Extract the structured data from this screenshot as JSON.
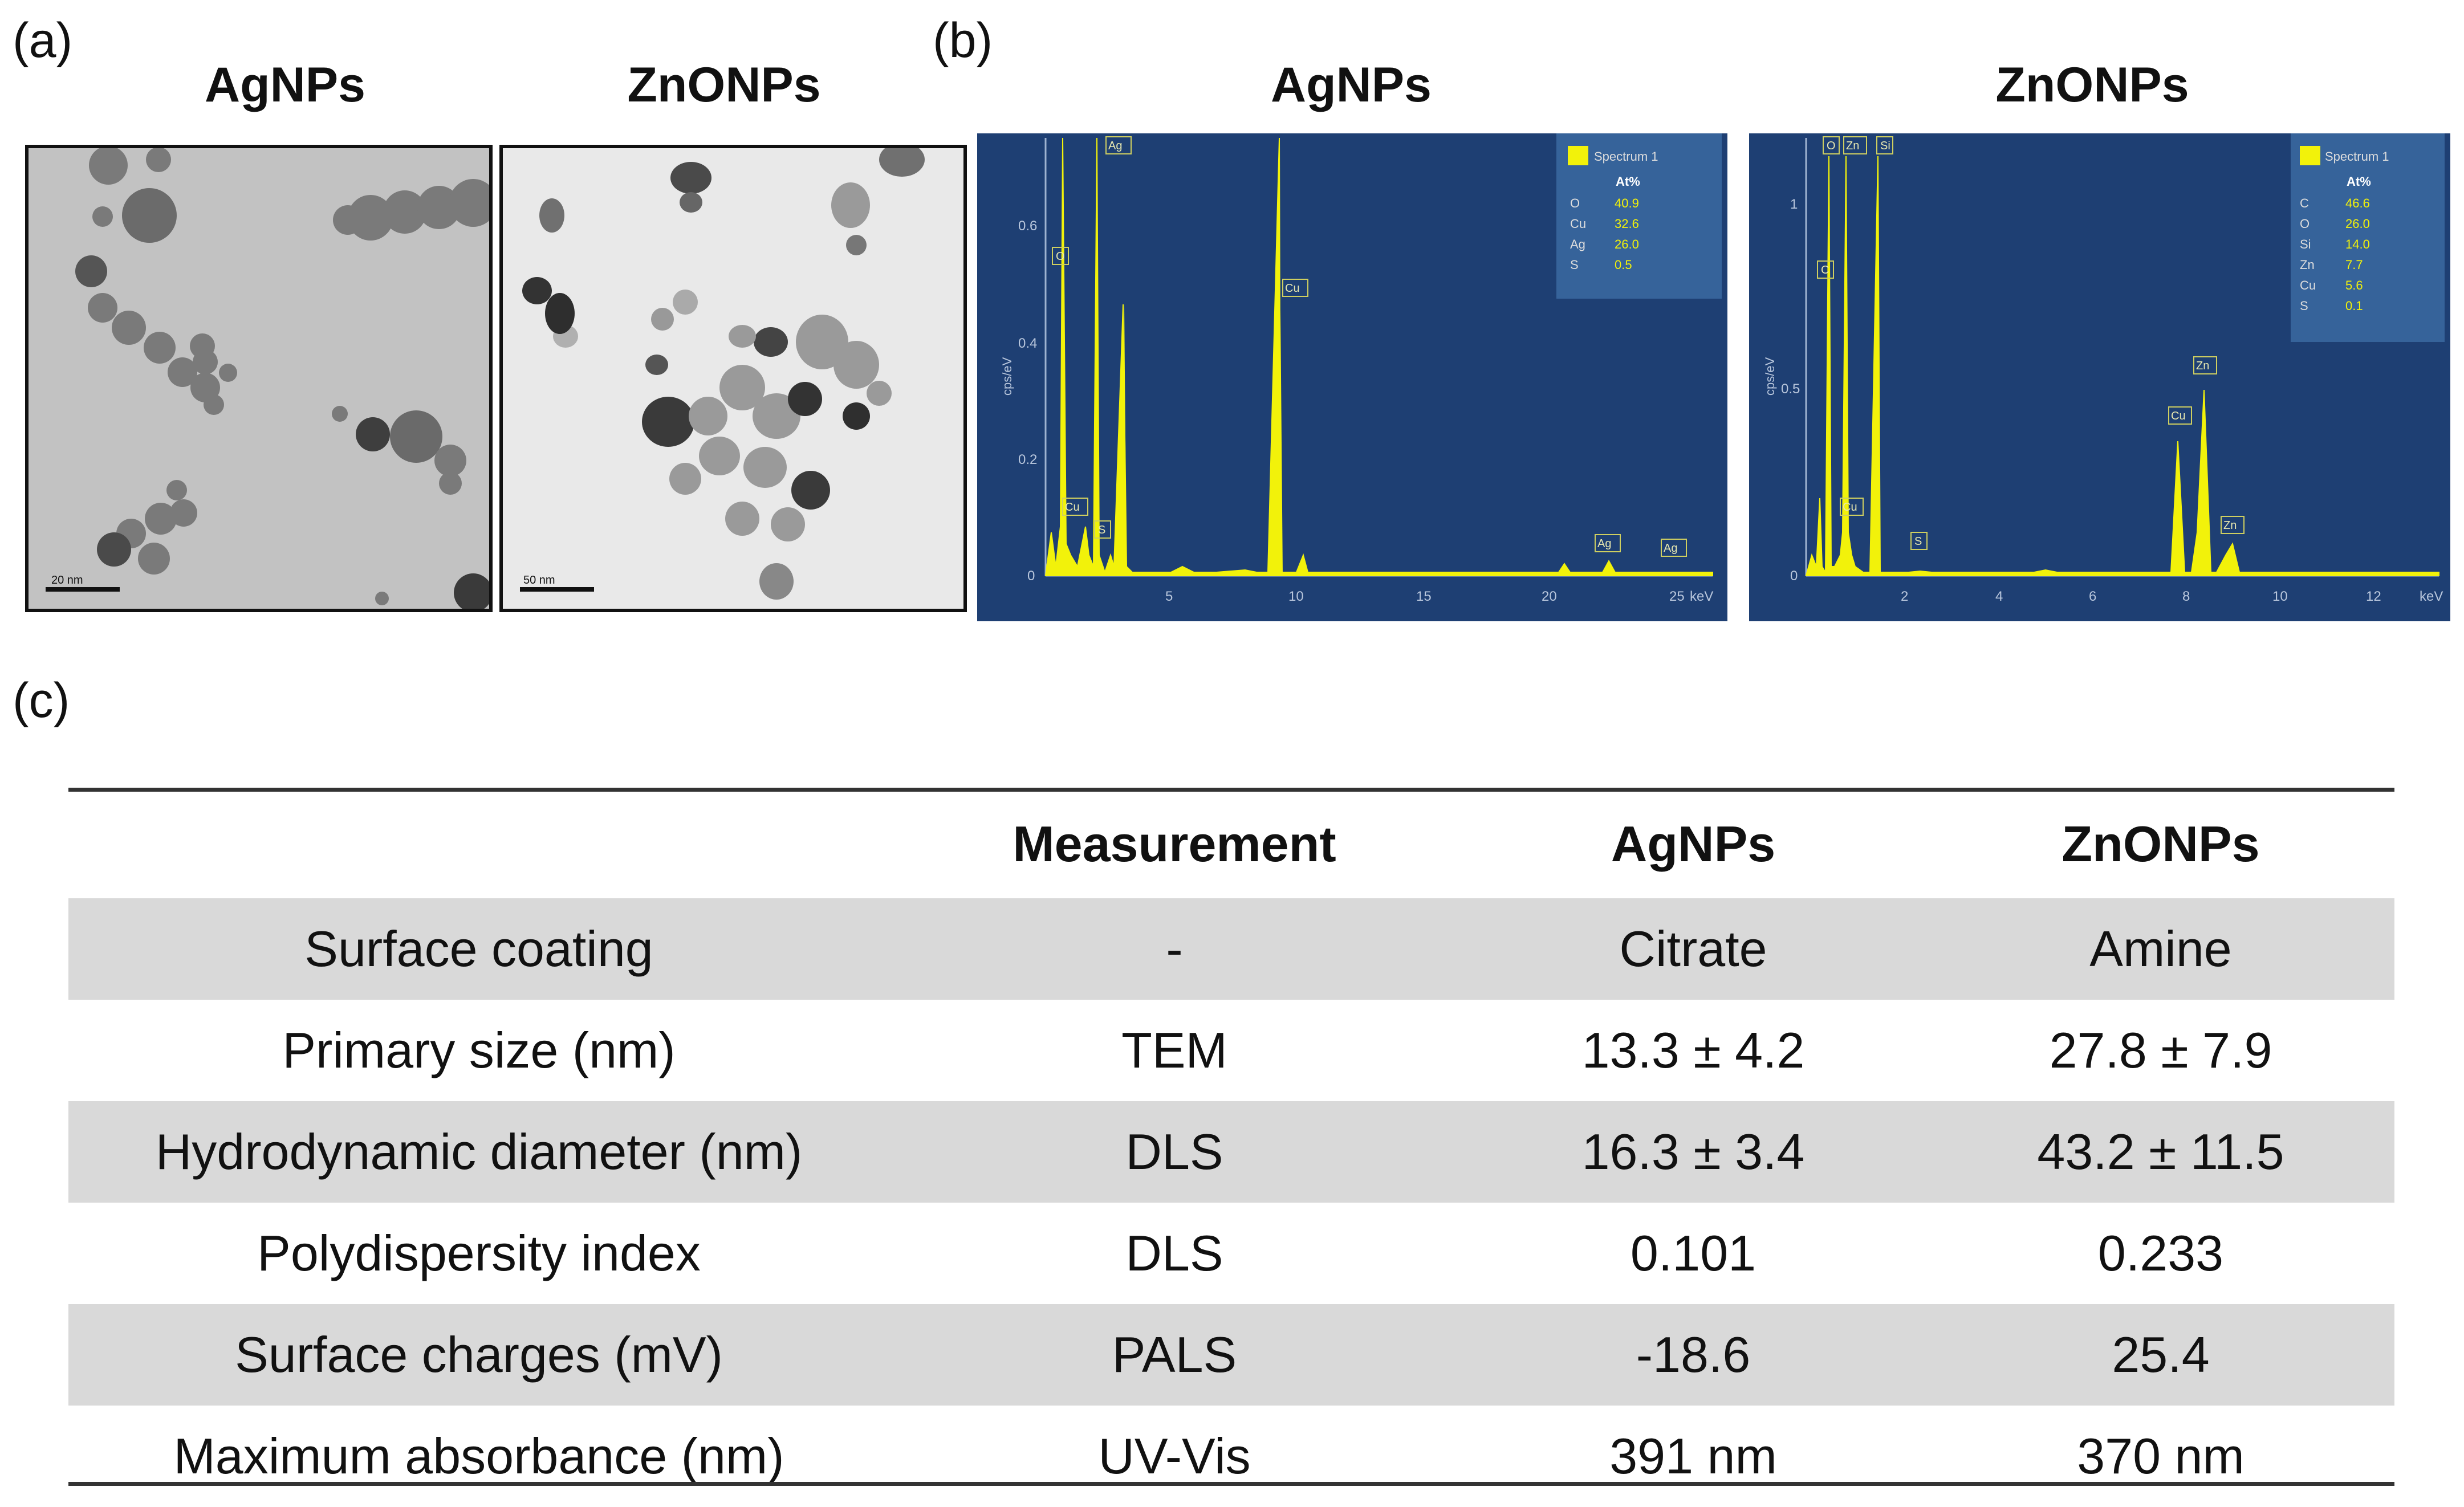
{
  "panels": {
    "a_label": "(a)",
    "b_label": "(b)",
    "c_label": "(c)"
  },
  "tem": {
    "ag_title": "AgNPs",
    "zno_title": "ZnONPs",
    "ag_scale": "20 nm",
    "zno_scale": "50 nm"
  },
  "edx": {
    "ag_title": "AgNPs",
    "zno_title": "ZnONPs",
    "ylabel": "cps/eV",
    "xunit": "keV",
    "ag": {
      "legend_title": "Spectrum 1",
      "col_header": "At%",
      "elements": [
        {
          "el": "O",
          "val": "40.9"
        },
        {
          "el": "Cu",
          "val": "32.6"
        },
        {
          "el": "Ag",
          "val": "26.0"
        },
        {
          "el": "S",
          "val": "0.5"
        }
      ],
      "yticks": [
        "0",
        "0.2",
        "0.4",
        "0.6"
      ],
      "xticks": [
        "5",
        "10",
        "15",
        "20",
        "25"
      ],
      "peak_labels": [
        "O",
        "Ag",
        "Cu",
        "Cu",
        "S",
        "Ag",
        "Ag"
      ]
    },
    "zno": {
      "legend_title": "Spectrum 1",
      "col_header": "At%",
      "elements": [
        {
          "el": "C",
          "val": "46.6"
        },
        {
          "el": "O",
          "val": "26.0"
        },
        {
          "el": "Si",
          "val": "14.0"
        },
        {
          "el": "Zn",
          "val": "7.7"
        },
        {
          "el": "Cu",
          "val": "5.6"
        },
        {
          "el": "S",
          "val": "0.1"
        }
      ],
      "yticks": [
        "0",
        "0.5",
        "1"
      ],
      "xticks": [
        "2",
        "4",
        "6",
        "8",
        "10",
        "12"
      ],
      "peak_labels": [
        "O",
        "Zn",
        "Si",
        "C",
        "Cu",
        "S",
        "Cu",
        "Zn",
        "Zn"
      ]
    }
  },
  "table": {
    "headers": [
      "",
      "Measurement",
      "AgNPs",
      "ZnONPs"
    ],
    "rows": [
      [
        "Surface coating",
        "-",
        "Citrate",
        "Amine"
      ],
      [
        "Primary size (nm)",
        "TEM",
        "13.3 ± 4.2",
        "27.8 ± 7.9"
      ],
      [
        "Hydrodynamic diameter (nm)",
        "DLS",
        "16.3 ± 3.4",
        "43.2 ± 11.5"
      ],
      [
        "Polydispersity index",
        "DLS",
        "0.101",
        "0.233"
      ],
      [
        "Surface charges (mV)",
        "PALS",
        "-18.6",
        "25.4"
      ],
      [
        "Maximum absorbance (nm)",
        "UV-Vis",
        "391 nm",
        "370 nm"
      ]
    ]
  },
  "colors": {
    "edx_bg": "#1e3f73",
    "spectrum": "#f2f20a",
    "row_shade": "#d9d9d9"
  }
}
